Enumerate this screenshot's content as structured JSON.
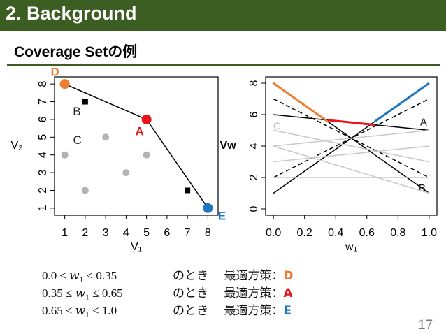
{
  "header": {
    "title": "2. Background"
  },
  "subtitle": "Coverage Setの例",
  "chart_data": [
    {
      "type": "scatter",
      "xlabel": "V₁",
      "ylabel": "V₂",
      "xlim": [
        0.5,
        8.5
      ],
      "ylim": [
        0.6,
        8.4
      ],
      "xticks": [
        1,
        2,
        3,
        4,
        5,
        6,
        7,
        8
      ],
      "yticks": [
        1,
        2,
        3,
        4,
        5,
        6,
        7,
        8
      ],
      "series": [
        {
          "name": "D",
          "color": "#ed7d31",
          "marker": "big-circle",
          "x": [
            1
          ],
          "values": [
            8
          ]
        },
        {
          "name": "A",
          "color": "#e8141a",
          "marker": "big-circle",
          "x": [
            5
          ],
          "values": [
            6
          ]
        },
        {
          "name": "E",
          "color": "#1f77c0",
          "marker": "big-circle",
          "x": [
            8
          ],
          "values": [
            1
          ]
        },
        {
          "name": "B",
          "color": "#000000",
          "marker": "square",
          "x": [
            2,
            7
          ],
          "values": [
            7,
            2
          ]
        },
        {
          "name": "C",
          "color": "#b3b3b3",
          "marker": "circle",
          "x": [
            1,
            2,
            3,
            4,
            5
          ],
          "values": [
            4,
            2,
            5,
            3,
            4
          ]
        }
      ]
    },
    {
      "type": "line",
      "xlabel": "w₁",
      "ylabel": "Vw",
      "xlim": [
        -0.05,
        1.05
      ],
      "ylim": [
        -0.4,
        8.4
      ],
      "xticks": [
        {
          "value": 0,
          "label": "0.0"
        },
        0.2,
        0.4,
        0.6,
        0.8,
        {
          "value": 1,
          "label": "1.0"
        }
      ],
      "yticks": [
        0,
        2,
        4,
        6,
        8
      ],
      "series": [
        {
          "color": "#000000",
          "style": "solid",
          "x": [
            0,
            1
          ],
          "values": [
            8,
            1
          ]
        },
        {
          "name": "A",
          "color": "#000000",
          "style": "solid",
          "x": [
            0,
            1
          ],
          "values": [
            6,
            5
          ]
        },
        {
          "color": "#000000",
          "style": "solid",
          "x": [
            0,
            1
          ],
          "values": [
            1,
            8
          ]
        },
        {
          "name": "B",
          "color": "#000000",
          "style": "dashed",
          "x": [
            0,
            1
          ],
          "values": [
            7,
            2
          ]
        },
        {
          "color": "#000000",
          "style": "dashed",
          "x": [
            0,
            1
          ],
          "values": [
            2,
            7
          ]
        },
        {
          "color": "#c8c8c8",
          "style": "solid",
          "x": [
            0,
            1
          ],
          "values": [
            4,
            1
          ]
        },
        {
          "color": "#c8c8c8",
          "style": "solid",
          "x": [
            0,
            1
          ],
          "values": [
            2,
            2
          ]
        },
        {
          "name": "C",
          "color": "#c8c8c8",
          "style": "solid",
          "x": [
            0,
            1
          ],
          "values": [
            5,
            3
          ]
        },
        {
          "color": "#c8c8c8",
          "style": "solid",
          "x": [
            0,
            1
          ],
          "values": [
            3,
            4
          ]
        },
        {
          "color": "#c8c8c8",
          "style": "solid",
          "x": [
            0,
            1
          ],
          "values": [
            4,
            5
          ]
        },
        {
          "color": "#ed7d31",
          "style": "thick",
          "x": [
            0,
            0.35
          ],
          "values": [
            8,
            5.55
          ]
        },
        {
          "color": "#e8141a",
          "style": "thick",
          "x": [
            0.35,
            0.65
          ],
          "values": [
            5.65,
            5.35
          ]
        },
        {
          "color": "#1f77c0",
          "style": "thick",
          "x": [
            0.65,
            1
          ],
          "values": [
            5.55,
            8
          ]
        }
      ]
    }
  ],
  "conditions": [
    {
      "range": "0.0 ≤ 𝑤₁ ≤ 0.35",
      "when": "のとき",
      "label": "最適方策：",
      "policy": "D",
      "color": "#ed7d31"
    },
    {
      "range": "0.35 ≤ 𝑤₁ ≤ 0.65",
      "when": "のとき",
      "label": "最適方策：",
      "policy": "A",
      "color": "#e8141a"
    },
    {
      "range": "0.65 ≤ 𝑤₁ ≤ 1.0",
      "when": "のとき",
      "label": "最適方策：",
      "policy": "E",
      "color": "#1f77c0"
    }
  ],
  "page_number": "17"
}
